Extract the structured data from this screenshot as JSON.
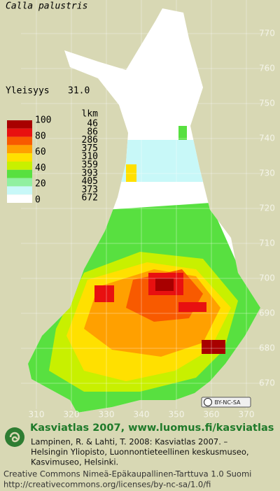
{
  "title": "Calla palustris",
  "frequency": {
    "label": "Yleisyys",
    "value": "31.0"
  },
  "legend": {
    "header": "lkm",
    "scale": [
      100,
      80,
      60,
      40,
      20,
      0
    ],
    "classes": [
      {
        "color": "#a80000",
        "count": 46
      },
      {
        "color": "#e81010",
        "count": 86
      },
      {
        "color": "#f85a00",
        "count": 286
      },
      {
        "color": "#ffa000",
        "count": 375
      },
      {
        "color": "#ffe000",
        "count": 310
      },
      {
        "color": "#c8f000",
        "count": 359
      },
      {
        "color": "#58e040",
        "count": 393
      },
      {
        "color": "#90f0a0",
        "count": 405
      },
      {
        "color": "#c8f8f8",
        "count": 373
      },
      {
        "color": "#ffffff",
        "count": 672
      }
    ]
  },
  "map": {
    "northing": [
      770,
      760,
      750,
      740,
      730,
      720,
      710,
      700,
      690,
      680,
      670
    ],
    "easting": [
      310,
      320,
      330,
      340,
      350,
      360,
      370
    ]
  },
  "license_badge": "BY-NC-SA",
  "footer": {
    "heading": "Kasviatlas 2007, www.luomus.fi/kasviatlas",
    "citation_lines": [
      "Lampinen, R. & Lahti, T. 2008: Kasviatlas 2007. –",
      "Helsingin Yliopisto, Luonnontieteellinen keskusmuseo,",
      "Kasvimuseo, Helsinki."
    ],
    "license_lines": [
      "Creative Commons Nimeä-Epäkaupallinen-Tarttuva 1.0 Suomi",
      "http://creativecommons.org/licenses/by-nc-sa/1.0/fi"
    ]
  }
}
